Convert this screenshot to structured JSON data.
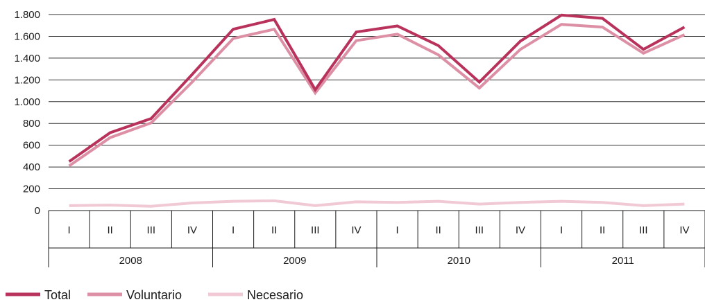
{
  "chart_data": {
    "type": "line",
    "title": "",
    "xlabel": "",
    "ylabel": "",
    "ylim": [
      0,
      1800
    ],
    "yticks": [
      0,
      200,
      400,
      600,
      800,
      1000,
      1200,
      1400,
      1600,
      1800
    ],
    "ytick_labels": [
      "0",
      "200",
      "400",
      "600",
      "800",
      "1.000",
      "1.200",
      "1.400",
      "1.600",
      "1.800"
    ],
    "grid": true,
    "legend": "bottom-left",
    "categories": [
      "I",
      "II",
      "III",
      "IV",
      "I",
      "II",
      "III",
      "IV",
      "I",
      "II",
      "III",
      "IV",
      "I",
      "II",
      "III",
      "IV"
    ],
    "groups": [
      {
        "label": "2008",
        "span": 4
      },
      {
        "label": "2009",
        "span": 4
      },
      {
        "label": "2010",
        "span": 4
      },
      {
        "label": "2011",
        "span": 4
      }
    ],
    "series": [
      {
        "name": "Total",
        "color": "#b8325c",
        "values": [
          450,
          715,
          845,
          1250,
          1665,
          1755,
          1110,
          1640,
          1695,
          1515,
          1180,
          1555,
          1795,
          1765,
          1480,
          1685
        ]
      },
      {
        "name": "Voluntario",
        "color": "#dc8fa5",
        "values": [
          410,
          670,
          805,
          1180,
          1580,
          1665,
          1080,
          1560,
          1620,
          1430,
          1125,
          1480,
          1710,
          1685,
          1445,
          1615
        ]
      },
      {
        "name": "Necesario",
        "color": "#f0c9d5",
        "values": [
          45,
          50,
          40,
          70,
          85,
          90,
          45,
          80,
          75,
          85,
          60,
          75,
          85,
          75,
          45,
          60
        ]
      }
    ]
  }
}
